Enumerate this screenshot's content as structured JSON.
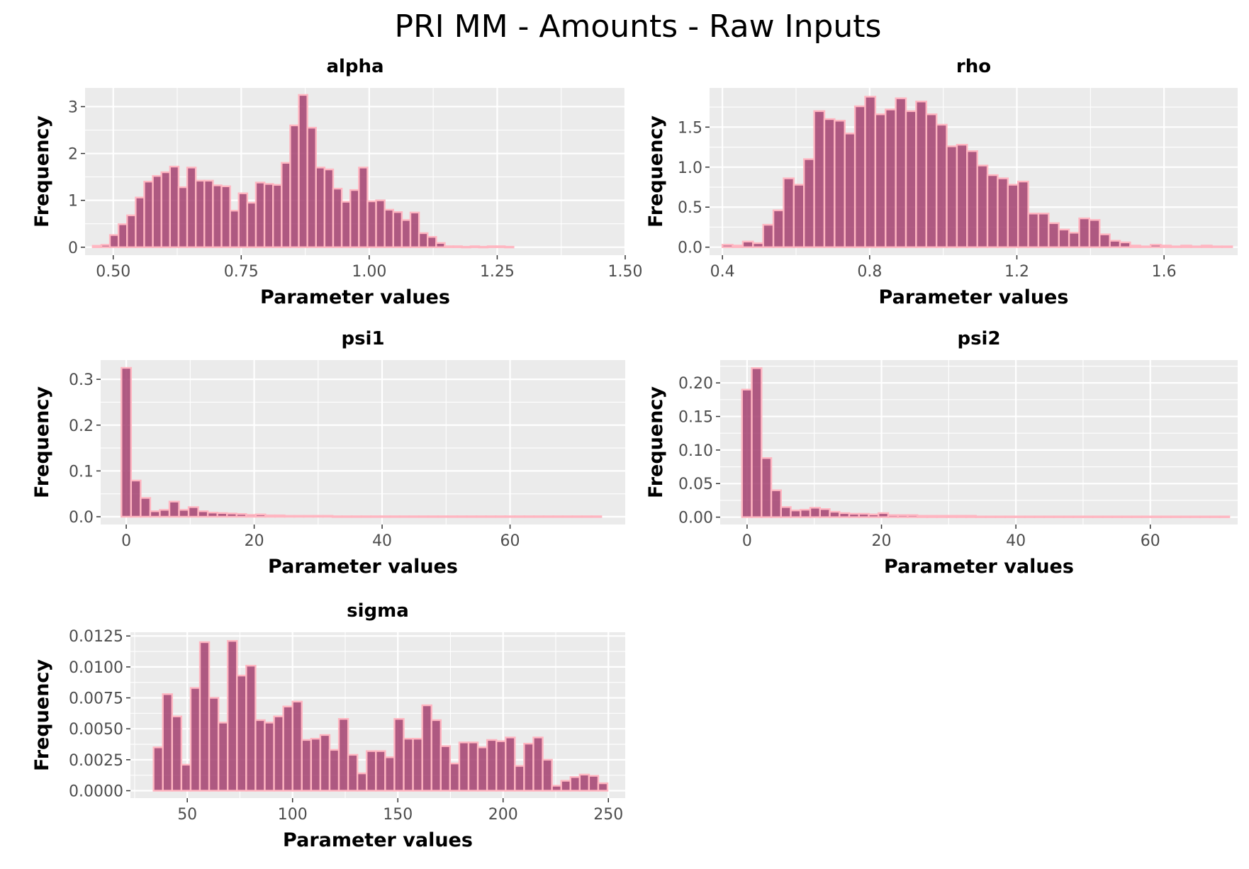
{
  "title": "PRI MM - Amounts - Raw Inputs",
  "colors": {
    "panel_background": "#ebebeb",
    "grid": "#ffffff",
    "bar_fill": "#a33f6e",
    "bar_outline": "#ffb6c1",
    "tick_text": "#4d4d4d"
  },
  "chart_data": [
    {
      "type": "bar",
      "title": "alpha",
      "xlabel": "Parameter values",
      "ylabel": "Frequency",
      "xlim": [
        0.445,
        1.5
      ],
      "ylim": [
        -0.17,
        3.4
      ],
      "xticks": [
        0.5,
        0.75,
        1.0,
        1.25,
        1.5
      ],
      "xtick_labels": [
        "0.50",
        "0.75",
        "1.00",
        "1.25",
        "1.50"
      ],
      "yticks": [
        0,
        1,
        2,
        3
      ],
      "ytick_labels": [
        "0",
        "1",
        "2",
        "3"
      ],
      "bin_start": 0.46,
      "bin_width": 0.01677,
      "values": [
        0.03,
        0.05,
        0.26,
        0.49,
        0.68,
        1.06,
        1.4,
        1.52,
        1.6,
        1.72,
        1.28,
        1.7,
        1.42,
        1.42,
        1.32,
        1.3,
        0.78,
        1.15,
        0.95,
        1.38,
        1.35,
        1.33,
        1.8,
        2.6,
        3.25,
        2.55,
        1.7,
        1.66,
        1.25,
        0.97,
        1.22,
        1.7,
        0.98,
        1.0,
        0.8,
        0.75,
        0.58,
        0.74,
        0.3,
        0.22,
        0.09,
        0.02,
        0.02,
        0.01,
        0.02,
        0.01,
        0.02,
        0.02,
        0.01
      ]
    },
    {
      "type": "bar",
      "title": "rho",
      "xlabel": "Parameter values",
      "ylabel": "Frequency",
      "xlim": [
        0.365,
        1.8
      ],
      "ylim": [
        -0.1,
        1.99
      ],
      "xticks": [
        0.4,
        0.8,
        1.2,
        1.6
      ],
      "xtick_labels": [
        "0.4",
        "0.8",
        "1.2",
        "1.6"
      ],
      "yticks": [
        0,
        0.5,
        1.0,
        1.5
      ],
      "ytick_labels": [
        "0.0",
        "0.5",
        "1.0",
        "1.5"
      ],
      "bin_start": 0.4,
      "bin_width": 0.0277,
      "values": [
        0.03,
        0.02,
        0.07,
        0.05,
        0.28,
        0.46,
        0.86,
        0.78,
        1.1,
        1.7,
        1.6,
        1.58,
        1.42,
        1.76,
        1.88,
        1.66,
        1.72,
        1.86,
        1.7,
        1.82,
        1.66,
        1.53,
        1.26,
        1.28,
        1.2,
        1.02,
        0.9,
        0.86,
        0.78,
        0.82,
        0.42,
        0.42,
        0.3,
        0.22,
        0.18,
        0.36,
        0.34,
        0.16,
        0.08,
        0.06,
        0.02,
        0.01,
        0.03,
        0.02,
        0.01,
        0.02,
        0.01,
        0.02,
        0.01,
        0.01
      ]
    },
    {
      "type": "bar",
      "title": "psi1",
      "xlabel": "Parameter values",
      "ylabel": "Frequency",
      "xlim": [
        -4,
        78
      ],
      "ylim": [
        -0.017,
        0.342
      ],
      "xticks": [
        0,
        20,
        40,
        60
      ],
      "xtick_labels": [
        "0",
        "20",
        "40",
        "60"
      ],
      "yticks": [
        0,
        0.1,
        0.2,
        0.3
      ],
      "ytick_labels": [
        "0.0",
        "0.1",
        "0.2",
        "0.3"
      ],
      "bin_start": -0.75,
      "bin_width": 1.5,
      "values": [
        0.325,
        0.079,
        0.041,
        0.012,
        0.015,
        0.033,
        0.015,
        0.021,
        0.012,
        0.009,
        0.008,
        0.007,
        0.006,
        0.004,
        0.005,
        0.003,
        0.003,
        0.002,
        0.002,
        0.002,
        0.002,
        0.002,
        0.001,
        0.001,
        0.001,
        0.001,
        0.001,
        0.001,
        0.001,
        0.001,
        0.001,
        0.001,
        0.001,
        0.001,
        0.001,
        0.001,
        0.001,
        0.001,
        0.001,
        0.001,
        0.001,
        0.001,
        0.001,
        0.001,
        0.001,
        0.001,
        0.001,
        0.001,
        0.001,
        0.001
      ]
    },
    {
      "type": "bar",
      "title": "psi2",
      "xlabel": "Parameter values",
      "ylabel": "Frequency",
      "xlim": [
        -4,
        73
      ],
      "ylim": [
        -0.011,
        0.234
      ],
      "xticks": [
        0,
        20,
        40,
        60
      ],
      "xtick_labels": [
        "0",
        "20",
        "40",
        "60"
      ],
      "yticks": [
        0,
        0.05,
        0.1,
        0.15,
        0.2
      ],
      "ytick_labels": [
        "0.00",
        "0.05",
        "0.10",
        "0.15",
        "0.20"
      ],
      "bin_start": -0.75,
      "bin_width": 1.45,
      "values": [
        0.19,
        0.222,
        0.088,
        0.04,
        0.015,
        0.01,
        0.011,
        0.014,
        0.012,
        0.008,
        0.006,
        0.005,
        0.005,
        0.004,
        0.006,
        0.003,
        0.003,
        0.003,
        0.002,
        0.002,
        0.002,
        0.002,
        0.002,
        0.002,
        0.001,
        0.001,
        0.001,
        0.001,
        0.001,
        0.001,
        0.001,
        0.001,
        0.001,
        0.001,
        0.001,
        0.001,
        0.001,
        0.001,
        0.001,
        0.001,
        0.001,
        0.001,
        0.001,
        0.001,
        0.001,
        0.001,
        0.001,
        0.001,
        0.001,
        0.001
      ]
    },
    {
      "type": "bar",
      "title": "sigma",
      "xlabel": "Parameter values",
      "ylabel": "Frequency",
      "xlim": [
        23,
        258
      ],
      "ylim": [
        -0.0006,
        0.0128
      ],
      "xticks": [
        50,
        100,
        150,
        200,
        250
      ],
      "xtick_labels": [
        "50",
        "100",
        "150",
        "200",
        "250"
      ],
      "yticks": [
        0,
        0.0025,
        0.005,
        0.0075,
        0.01,
        0.0125
      ],
      "ytick_labels": [
        "0.0000",
        "0.0025",
        "0.0050",
        "0.0075",
        "0.0100",
        "0.0125"
      ],
      "bin_start": 34,
      "bin_width": 4.4,
      "values": [
        0.0035,
        0.0078,
        0.006,
        0.0021,
        0.0083,
        0.012,
        0.0075,
        0.0055,
        0.0121,
        0.0093,
        0.0101,
        0.0057,
        0.0055,
        0.006,
        0.0068,
        0.0072,
        0.0041,
        0.0042,
        0.0045,
        0.0033,
        0.0058,
        0.0029,
        0.0014,
        0.0032,
        0.0032,
        0.0027,
        0.0058,
        0.0042,
        0.0042,
        0.0069,
        0.0057,
        0.0036,
        0.0022,
        0.0039,
        0.0039,
        0.0035,
        0.0041,
        0.004,
        0.0043,
        0.002,
        0.0038,
        0.0043,
        0.0025,
        0.0004,
        0.0008,
        0.0011,
        0.0013,
        0.0012,
        0.0006
      ]
    }
  ]
}
